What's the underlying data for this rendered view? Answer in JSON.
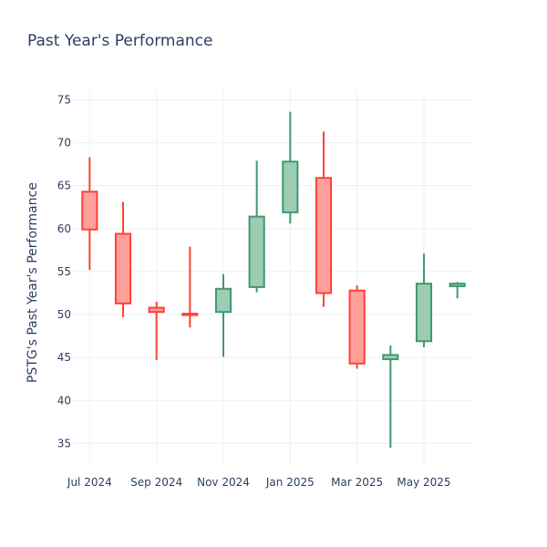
{
  "chart_data": {
    "type": "candlestick",
    "title": "Past Year's Performance",
    "xlabel": "",
    "ylabel": "PSTG's Past Year's Performance",
    "ylim": [
      32.5,
      76
    ],
    "yticks": [
      35,
      40,
      45,
      50,
      55,
      60,
      65,
      70,
      75
    ],
    "xticks": [
      {
        "label": "Jul 2024",
        "index": 0
      },
      {
        "label": "Sep 2024",
        "index": 2
      },
      {
        "label": "Nov 2024",
        "index": 4
      },
      {
        "label": "Jan 2025",
        "index": 6
      },
      {
        "label": "Mar 2025",
        "index": 8
      },
      {
        "label": "May 2025",
        "index": 10
      }
    ],
    "grid": true,
    "colors": {
      "increasing_line": "#3d9970",
      "increasing_fill": "#9ecbb4",
      "decreasing_line": "#ff4136",
      "decreasing_fill": "#ffa09b"
    },
    "candles": [
      {
        "open": 64.3,
        "high": 68.3,
        "low": 55.2,
        "close": 59.9
      },
      {
        "open": 59.4,
        "high": 63.1,
        "low": 49.7,
        "close": 51.3
      },
      {
        "open": 50.8,
        "high": 51.5,
        "low": 44.7,
        "close": 50.3
      },
      {
        "open": 50.1,
        "high": 57.9,
        "low": 48.5,
        "close": 50.0
      },
      {
        "open": 50.3,
        "high": 54.7,
        "low": 45.1,
        "close": 53.0
      },
      {
        "open": 53.2,
        "high": 67.9,
        "low": 52.6,
        "close": 61.4
      },
      {
        "open": 61.9,
        "high": 73.6,
        "low": 60.6,
        "close": 67.8
      },
      {
        "open": 65.9,
        "high": 71.3,
        "low": 50.9,
        "close": 52.5
      },
      {
        "open": 52.8,
        "high": 53.4,
        "low": 43.7,
        "close": 44.3
      },
      {
        "open": 44.8,
        "high": 46.4,
        "low": 34.5,
        "close": 45.3
      },
      {
        "open": 46.9,
        "high": 57.1,
        "low": 46.2,
        "close": 53.6
      },
      {
        "open": 53.3,
        "high": 53.8,
        "low": 51.9,
        "close": 53.6
      }
    ]
  }
}
